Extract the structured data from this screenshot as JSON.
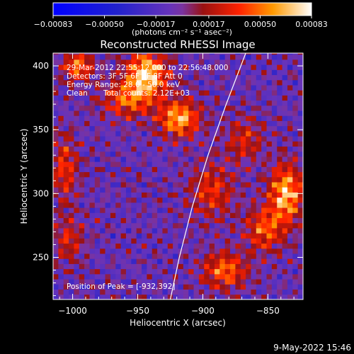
{
  "chart_data": {
    "type": "heatmap",
    "title": "Reconstructed RHESSI Image",
    "xlabel": "Heliocentric X (arcsec)",
    "ylabel": "Heliocentric Y (arcsec)",
    "xlim": [
      -1015,
      -823
    ],
    "ylim": [
      217,
      410
    ],
    "x_ticks": [
      -1000,
      -950,
      -900,
      -850
    ],
    "x_tick_labels": [
      "−1000",
      "−950",
      "−900",
      "−850"
    ],
    "y_ticks": [
      250,
      300,
      350,
      400
    ],
    "y_tick_labels": [
      "250",
      "300",
      "350",
      "400"
    ],
    "colorbar": {
      "range": [
        -0.00083,
        0.00083
      ],
      "ticks": [
        -0.00083,
        -0.0005,
        -0.00017,
        0.00017,
        0.0005,
        0.00083
      ],
      "tick_labels": [
        "−0.00083",
        "−0.00050",
        "−0.00017",
        "0.00017",
        "0.00050",
        "0.00083"
      ],
      "unit_label": "(photons cm⁻² s⁻¹ asec⁻²)"
    },
    "annotations": {
      "time_range": "29-Mar-2012 22:55:12.000 to 22:56:48.000",
      "detectors": "Detectors: 3F 5F 6F 7F 8F  Att 0",
      "energy": "Energy Range: 28.0 - 50.0 keV",
      "method": "Clean",
      "total_counts": "Total counts: 2.12E+03",
      "peak": "Position of Peak = [-932,392]"
    },
    "peak_position": [
      -932,
      392
    ],
    "limb": [
      [
        -925,
        217
      ],
      [
        -918,
        250
      ],
      [
        -908,
        290
      ],
      [
        -896,
        330
      ],
      [
        -882,
        370
      ],
      [
        -867,
        410
      ]
    ],
    "sources": [
      {
        "x": -945,
        "y": 392,
        "amp": 0.00083,
        "sx": 11,
        "sy": 12
      },
      {
        "x": -920,
        "y": 357,
        "amp": 0.00072,
        "sx": 11,
        "sy": 10
      },
      {
        "x": -960,
        "y": 372,
        "amp": 0.0005,
        "sx": 14,
        "sy": 10
      },
      {
        "x": -998,
        "y": 398,
        "amp": 0.00058,
        "sx": 8,
        "sy": 8
      },
      {
        "x": -838,
        "y": 298,
        "amp": 0.00075,
        "sx": 9,
        "sy": 16
      },
      {
        "x": -855,
        "y": 270,
        "amp": 0.0005,
        "sx": 10,
        "sy": 12
      },
      {
        "x": -885,
        "y": 238,
        "amp": 0.00055,
        "sx": 12,
        "sy": 10
      },
      {
        "x": -895,
        "y": 300,
        "amp": 0.0004,
        "sx": 12,
        "sy": 15
      },
      {
        "x": -1008,
        "y": 318,
        "amp": 0.00042,
        "sx": 7,
        "sy": 18
      },
      {
        "x": -1005,
        "y": 262,
        "amp": 0.00035,
        "sx": 8,
        "sy": 12
      },
      {
        "x": -870,
        "y": 340,
        "amp": 0.00035,
        "sx": 10,
        "sy": 12
      }
    ]
  },
  "footer": {
    "timestamp": "9-May-2022 15:46"
  }
}
